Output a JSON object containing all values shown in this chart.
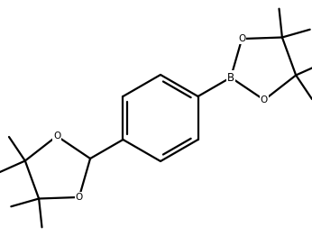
{
  "background_color": "#ffffff",
  "line_color": "#000000",
  "line_width": 1.6,
  "font_size": 7.5,
  "figsize": [
    3.46,
    2.62
  ],
  "dpi": 100,
  "xlim": [
    0,
    346
  ],
  "ylim": [
    0,
    262
  ]
}
